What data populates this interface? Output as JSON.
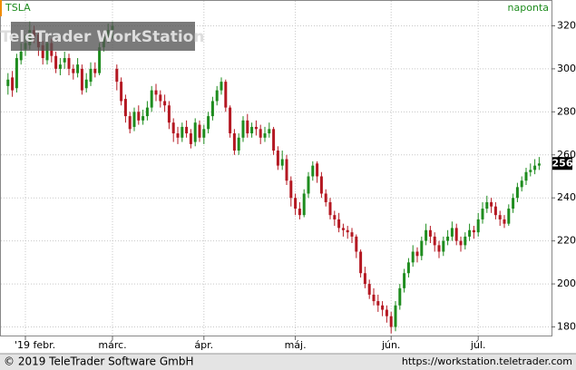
{
  "chart_data": {
    "type": "candlestick",
    "symbol": "TSLA",
    "period": "naponta",
    "watermark": "TeleTrader WorkStation",
    "footer_left": "© 2019 TeleTrader Software GmbH",
    "footer_right": "https://workstation.teletrader.com",
    "up_color": "#1e8c1e",
    "down_color": "#b41822",
    "grid": true,
    "ylim": [
      176,
      332
    ],
    "yticks": [
      180,
      200,
      220,
      240,
      260,
      280,
      300,
      320
    ],
    "xlim": [
      -1,
      124
    ],
    "xticks": [
      {
        "value": 4,
        "label": "'19 febr."
      },
      {
        "value": 24,
        "label": "márc."
      },
      {
        "value": 45,
        "label": "ápr."
      },
      {
        "value": 66,
        "label": "máj."
      },
      {
        "value": 88,
        "label": "jún."
      },
      {
        "value": 108,
        "label": "júl."
      }
    ],
    "candles": [
      [
        292,
        298,
        288,
        295
      ],
      [
        296,
        299,
        287,
        290
      ],
      [
        291,
        307,
        289,
        305
      ],
      [
        304,
        312,
        302,
        308
      ],
      [
        309,
        316,
        306,
        312
      ],
      [
        311,
        322,
        309,
        318
      ],
      [
        318,
        320,
        312,
        315
      ],
      [
        316,
        318,
        306,
        310
      ],
      [
        311,
        313,
        302,
        305
      ],
      [
        304,
        315,
        302,
        312
      ],
      [
        312,
        314,
        303,
        306
      ],
      [
        306,
        308,
        298,
        300
      ],
      [
        300,
        305,
        297,
        302
      ],
      [
        303,
        308,
        300,
        305
      ],
      [
        305,
        307,
        297,
        300
      ],
      [
        300,
        302,
        295,
        298
      ],
      [
        298,
        305,
        296,
        302
      ],
      [
        300,
        302,
        288,
        290
      ],
      [
        291,
        298,
        289,
        295
      ],
      [
        294,
        303,
        292,
        300
      ],
      [
        300,
        303,
        296,
        298
      ],
      [
        298,
        312,
        297,
        310
      ],
      [
        310,
        318,
        308,
        315
      ],
      [
        314,
        321,
        312,
        318
      ],
      [
        318,
        322,
        314,
        320
      ],
      [
        300,
        302,
        290,
        294
      ],
      [
        294,
        296,
        283,
        285
      ],
      [
        286,
        288,
        275,
        278
      ],
      [
        278,
        280,
        270,
        272
      ],
      [
        273,
        282,
        271,
        280
      ],
      [
        280,
        283,
        274,
        276
      ],
      [
        276,
        281,
        274,
        278
      ],
      [
        278,
        285,
        276,
        282
      ],
      [
        282,
        292,
        280,
        290
      ],
      [
        290,
        293,
        285,
        288
      ],
      [
        288,
        290,
        282,
        285
      ],
      [
        285,
        288,
        280,
        283
      ],
      [
        283,
        285,
        272,
        275
      ],
      [
        275,
        277,
        266,
        270
      ],
      [
        270,
        273,
        265,
        268
      ],
      [
        268,
        275,
        266,
        273
      ],
      [
        273,
        276,
        268,
        270
      ],
      [
        270,
        272,
        263,
        265
      ],
      [
        266,
        277,
        264,
        275
      ],
      [
        274,
        276,
        266,
        268
      ],
      [
        268,
        274,
        265,
        272
      ],
      [
        272,
        280,
        270,
        278
      ],
      [
        278,
        287,
        276,
        285
      ],
      [
        285,
        292,
        283,
        290
      ],
      [
        290,
        296,
        288,
        294
      ],
      [
        294,
        295,
        280,
        282
      ],
      [
        282,
        283,
        268,
        270
      ],
      [
        270,
        272,
        260,
        262
      ],
      [
        262,
        270,
        260,
        268
      ],
      [
        268,
        278,
        266,
        276
      ],
      [
        276,
        279,
        268,
        270
      ],
      [
        270,
        275,
        268,
        273
      ],
      [
        273,
        276,
        269,
        272
      ],
      [
        272,
        274,
        265,
        268
      ],
      [
        268,
        273,
        266,
        270
      ],
      [
        270,
        275,
        268,
        272
      ],
      [
        272,
        273,
        260,
        262
      ],
      [
        262,
        264,
        253,
        255
      ],
      [
        255,
        262,
        253,
        258
      ],
      [
        258,
        260,
        246,
        248
      ],
      [
        248,
        250,
        236,
        240
      ],
      [
        240,
        242,
        232,
        235
      ],
      [
        235,
        238,
        230,
        232
      ],
      [
        232,
        244,
        231,
        242
      ],
      [
        242,
        252,
        240,
        250
      ],
      [
        250,
        257,
        248,
        255
      ],
      [
        256,
        257,
        247,
        250
      ],
      [
        250,
        252,
        240,
        242
      ],
      [
        242,
        244,
        236,
        238
      ],
      [
        238,
        240,
        230,
        232
      ],
      [
        232,
        234,
        227,
        230
      ],
      [
        230,
        233,
        224,
        226
      ],
      [
        226,
        228,
        222,
        225
      ],
      [
        225,
        227,
        221,
        224
      ],
      [
        224,
        226,
        219,
        222
      ],
      [
        222,
        223,
        212,
        215
      ],
      [
        215,
        216,
        203,
        205
      ],
      [
        205,
        208,
        198,
        200
      ],
      [
        200,
        202,
        193,
        195
      ],
      [
        195,
        198,
        190,
        192
      ],
      [
        192,
        195,
        187,
        190
      ],
      [
        190,
        192,
        185,
        188
      ],
      [
        188,
        190,
        182,
        185
      ],
      [
        185,
        187,
        177,
        180
      ],
      [
        180,
        192,
        178,
        190
      ],
      [
        190,
        200,
        188,
        198
      ],
      [
        198,
        207,
        196,
        205
      ],
      [
        205,
        212,
        203,
        210
      ],
      [
        210,
        218,
        208,
        215
      ],
      [
        215,
        217,
        210,
        213
      ],
      [
        213,
        222,
        211,
        220
      ],
      [
        220,
        228,
        218,
        225
      ],
      [
        225,
        227,
        219,
        222
      ],
      [
        222,
        224,
        215,
        218
      ],
      [
        218,
        220,
        212,
        215
      ],
      [
        215,
        222,
        213,
        220
      ],
      [
        220,
        225,
        218,
        222
      ],
      [
        222,
        229,
        220,
        226
      ],
      [
        226,
        228,
        218,
        220
      ],
      [
        220,
        222,
        215,
        218
      ],
      [
        218,
        224,
        216,
        222
      ],
      [
        222,
        228,
        220,
        225
      ],
      [
        225,
        227,
        221,
        224
      ],
      [
        224,
        233,
        222,
        230
      ],
      [
        230,
        238,
        228,
        235
      ],
      [
        235,
        241,
        233,
        238
      ],
      [
        238,
        240,
        233,
        236
      ],
      [
        236,
        238,
        230,
        232
      ],
      [
        232,
        234,
        227,
        230
      ],
      [
        230,
        232,
        226,
        228
      ],
      [
        228,
        237,
        227,
        235
      ],
      [
        235,
        242,
        233,
        240
      ],
      [
        240,
        247,
        238,
        245
      ],
      [
        245,
        250,
        243,
        248
      ],
      [
        248,
        254,
        246,
        252
      ],
      [
        252,
        256,
        250,
        253
      ],
      [
        253,
        258,
        251,
        255
      ],
      [
        255,
        259,
        253,
        256
      ]
    ]
  }
}
